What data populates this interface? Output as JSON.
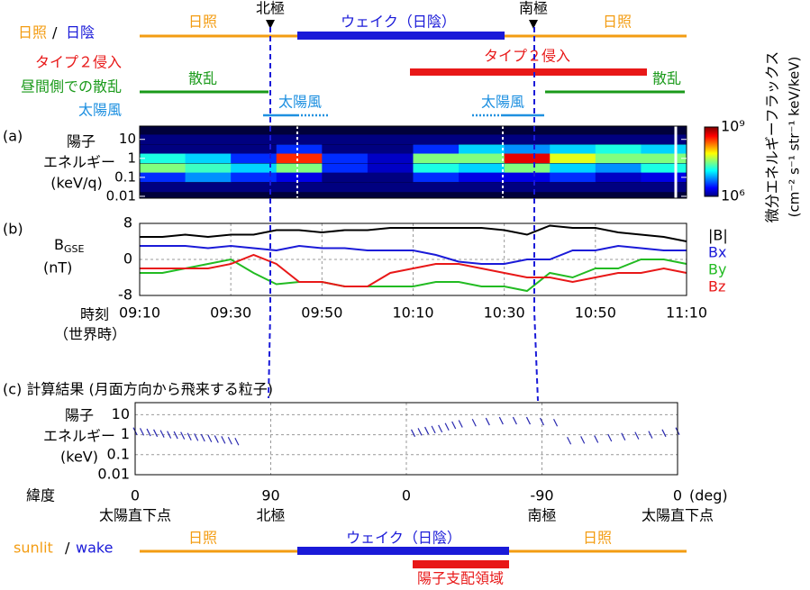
{
  "top_bar": {
    "legend": {
      "sunlit": "日照",
      "separator": "/",
      "wake": "日陰"
    },
    "sunlit_left": "日照",
    "wake": "ウェイク（日陰）",
    "sunlit_right": "日照",
    "north_pole": "北極",
    "south_pole": "南極"
  },
  "type2": {
    "label": "タイプ２侵入",
    "bar_label": "タイプ２侵入"
  },
  "dayside_scatter": {
    "label": "昼間側での散乱",
    "left": "散乱",
    "right": "散乱"
  },
  "solar_wind": {
    "label": "太陽風",
    "left": "太陽風",
    "right": "太陽風"
  },
  "chart_data": [
    {
      "type": "heatmap",
      "panel_label": "(a)",
      "ylabel": [
        "陽子",
        "エネルギー",
        "(keV/q)"
      ],
      "ylog": true,
      "ylim": [
        0.008,
        50
      ],
      "yticks": [
        10,
        1,
        0.1,
        0.01
      ],
      "y": [
        10,
        3,
        1,
        0.3,
        0.1,
        0.03
      ],
      "values": [
        [
          1000000,
          1000000,
          1000000,
          1000000,
          1000000,
          1000000,
          1000000,
          1000000,
          1000000,
          1000000,
          1000000,
          1000000
        ],
        [
          1000000,
          1000000,
          1000000,
          3200000,
          1000000,
          1000000,
          3200000,
          10000000,
          6300000,
          10000000,
          16000000,
          10000000
        ],
        [
          16000000,
          10000000,
          3200000,
          320000000,
          3200000,
          1600000,
          32000000,
          32000000,
          500000000,
          63000000,
          32000000,
          32000000
        ],
        [
          32000000,
          20000000,
          10000000,
          32000000,
          3200000,
          1600000,
          16000000,
          10000000,
          32000000,
          10000000,
          6300000,
          16000000
        ],
        [
          3200000,
          6300000,
          3200000,
          2000000,
          1000000,
          1000000,
          3200000,
          2000000,
          2000000,
          3200000,
          1600000,
          2000000
        ],
        [
          1000000,
          1000000,
          1000000,
          1000000,
          1000000,
          1000000,
          1000000,
          1000000,
          1000000,
          1000000,
          1000000,
          1000000
        ]
      ],
      "clim": [
        1000000,
        1000000000
      ],
      "cticks": [
        {
          "value": 1000000000,
          "label": "10⁹"
        },
        {
          "value": 1000000,
          "label": "10⁶"
        }
      ],
      "colorbar_label": "微分エネルギーフラックス",
      "colorbar_unit": "(cm⁻² s⁻¹ str⁻¹ keV/keV)"
    },
    {
      "type": "line",
      "panel_label": "(b)",
      "ylabel": {
        "text": "B",
        "subscript": "GSE"
      },
      "yunit": "(nT)",
      "xlabel": [
        "時刻",
        "（世界時）"
      ],
      "grid": true,
      "categories": [
        "09:10",
        null,
        null,
        null,
        "09:30",
        null,
        null,
        null,
        "09:50",
        null,
        null,
        null,
        "10:10",
        null,
        null,
        null,
        "10:30",
        null,
        null,
        null,
        "10:50",
        null,
        null,
        null,
        "11:10"
      ],
      "ylim": [
        -8,
        8
      ],
      "yticks": [
        -8,
        0,
        8
      ],
      "series": [
        {
          "name": "|B|",
          "color": "#000000",
          "values": [
            5,
            5,
            5.5,
            5,
            5.5,
            5.5,
            6.5,
            6.5,
            6,
            6.5,
            6.5,
            7,
            7,
            7,
            7,
            7,
            6.5,
            5.5,
            7.5,
            7,
            7,
            6,
            5.5,
            5,
            4
          ]
        },
        {
          "name": "Bx",
          "color": "#1a1ad8",
          "values": [
            3,
            3,
            3,
            2.5,
            3,
            2.5,
            2,
            3,
            2.5,
            2.5,
            2,
            2,
            2,
            1,
            -0.5,
            -1,
            -1,
            0,
            0,
            2,
            2,
            3,
            2.5,
            2,
            2
          ]
        },
        {
          "name": "By",
          "color": "#22bb22",
          "values": [
            -3,
            -3,
            -2,
            -1,
            0,
            -3,
            -5.5,
            -5,
            -5,
            -6,
            -6,
            -6,
            -6,
            -5,
            -5,
            -6,
            -6,
            -7,
            -3,
            -4,
            -2,
            -2,
            0,
            0,
            -1
          ]
        },
        {
          "name": "Bz",
          "color": "#e81818",
          "values": [
            -2,
            -2,
            -2,
            -2,
            -1,
            1,
            -1,
            -5,
            -5,
            -6,
            -6,
            -3,
            -2,
            -1,
            -1,
            -2,
            -3,
            -4,
            -4,
            -5,
            -4,
            -3,
            -3,
            -2,
            -3
          ]
        }
      ]
    },
    {
      "type": "scatter",
      "title": "(c) 計算結果 (月面方向から飛来する粒子)",
      "ylabel": [
        "陽子",
        "エネルギー",
        "(keV)"
      ],
      "ylog": true,
      "ylim": [
        0.01,
        40
      ],
      "yticks": [
        10,
        1,
        0.1,
        0.01
      ],
      "xlim": [
        0,
        4
      ],
      "xticks": [
        {
          "value": 0,
          "label": "0"
        },
        {
          "value": 1,
          "label": "90"
        },
        {
          "value": 2,
          "label": "0"
        },
        {
          "value": 3,
          "label": "-90"
        },
        {
          "value": 4,
          "label": "0"
        }
      ],
      "xunit": "(deg)",
      "xlabel": "緯度",
      "xtick_sublabels": [
        "太陽直下点",
        "北極",
        null,
        "南極",
        "太陽直下点"
      ],
      "color": "#2a2ab0",
      "grid": true,
      "x": [
        0,
        0.05,
        0.1,
        0.15,
        0.2,
        0.25,
        0.3,
        0.35,
        0.4,
        0.45,
        0.5,
        0.55,
        0.6,
        0.65,
        0.7,
        0.75,
        2.05,
        2.1,
        2.15,
        2.2,
        2.25,
        2.3,
        2.35,
        2.4,
        2.5,
        2.6,
        2.7,
        2.8,
        2.9,
        3.0,
        3.1,
        3.2,
        3.3,
        3.4,
        3.5,
        3.6,
        3.7,
        3.8,
        3.9,
        4.0
      ],
      "y": [
        1.5,
        1.4,
        1.3,
        1.2,
        1.1,
        1.0,
        0.95,
        0.9,
        0.8,
        0.75,
        0.7,
        0.65,
        0.6,
        0.55,
        0.5,
        0.45,
        1.2,
        1.4,
        1.6,
        1.8,
        2,
        2.5,
        3,
        3.5,
        4,
        4.5,
        5,
        5,
        5,
        4.5,
        4,
        0.5,
        0.55,
        0.6,
        0.7,
        0.8,
        0.9,
        1.0,
        1.2,
        1.5
      ]
    }
  ],
  "bottom_bar": {
    "legend": {
      "sunlit": "sunlit",
      "separator": "/",
      "wake": "wake"
    },
    "sunlit_left": "日照",
    "wake": "ウェイク（日陰）",
    "sunlit_right": "日照",
    "proton_region": "陽子支配領域"
  }
}
